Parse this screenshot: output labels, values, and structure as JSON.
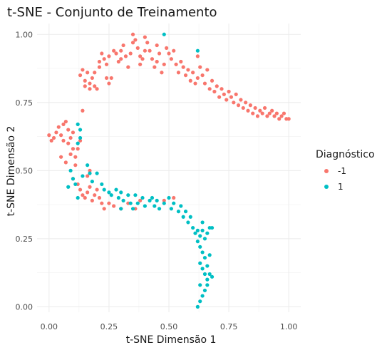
{
  "chart_data": {
    "type": "scatter",
    "title": "t-SNE - Conjunto de Treinamento",
    "xlabel": "t-SNE Dimensão 1",
    "ylabel": "t-SNE Dimensão 2",
    "xlim": [
      -0.05,
      1.05
    ],
    "ylim": [
      -0.02,
      1.04
    ],
    "x_ticks": [
      "0.00",
      "0.25",
      "0.50",
      "0.75",
      "1.00"
    ],
    "y_ticks": [
      "0.00",
      "0.25",
      "0.50",
      "0.75",
      "1.00"
    ],
    "grid": true,
    "legend": {
      "title": "Diagnóstico",
      "position": "right"
    },
    "series": [
      {
        "name": "-1",
        "color": "#F8766D",
        "points": [
          [
            0.13,
            0.85
          ],
          [
            0.14,
            0.87
          ],
          [
            0.15,
            0.83
          ],
          [
            0.16,
            0.86
          ],
          [
            0.17,
            0.82
          ],
          [
            0.18,
            0.84
          ],
          [
            0.19,
            0.81
          ],
          [
            0.19,
            0.86
          ],
          [
            0.2,
            0.8
          ],
          [
            0.21,
            0.88
          ],
          [
            0.21,
            0.9
          ],
          [
            0.22,
            0.93
          ],
          [
            0.23,
            0.91
          ],
          [
            0.24,
            0.89
          ],
          [
            0.25,
            0.92
          ],
          [
            0.24,
            0.84
          ],
          [
            0.25,
            0.82
          ],
          [
            0.26,
            0.84
          ],
          [
            0.27,
            0.94
          ],
          [
            0.28,
            0.93
          ],
          [
            0.29,
            0.9
          ],
          [
            0.3,
            0.94
          ],
          [
            0.31,
            0.96
          ],
          [
            0.32,
            0.92
          ],
          [
            0.33,
            0.88
          ],
          [
            0.34,
            0.93
          ],
          [
            0.35,
            0.97
          ],
          [
            0.35,
            1.0
          ],
          [
            0.36,
            0.98
          ],
          [
            0.37,
            0.95
          ],
          [
            0.38,
            0.92
          ],
          [
            0.38,
            0.89
          ],
          [
            0.39,
            0.91
          ],
          [
            0.4,
            0.94
          ],
          [
            0.4,
            0.99
          ],
          [
            0.41,
            0.97
          ],
          [
            0.42,
            0.94
          ],
          [
            0.43,
            0.91
          ],
          [
            0.44,
            0.88
          ],
          [
            0.45,
            0.9
          ],
          [
            0.45,
            0.96
          ],
          [
            0.46,
            0.93
          ],
          [
            0.47,
            0.86
          ],
          [
            0.48,
            0.89
          ],
          [
            0.49,
            0.95
          ],
          [
            0.5,
            0.93
          ],
          [
            0.51,
            0.91
          ],
          [
            0.52,
            0.94
          ],
          [
            0.53,
            0.89
          ],
          [
            0.54,
            0.86
          ],
          [
            0.55,
            0.9
          ],
          [
            0.56,
            0.88
          ],
          [
            0.57,
            0.85
          ],
          [
            0.58,
            0.87
          ],
          [
            0.59,
            0.83
          ],
          [
            0.6,
            0.86
          ],
          [
            0.61,
            0.82
          ],
          [
            0.62,
            0.84
          ],
          [
            0.62,
            0.92
          ],
          [
            0.63,
            0.88
          ],
          [
            0.64,
            0.85
          ],
          [
            0.65,
            0.82
          ],
          [
            0.66,
            0.87
          ],
          [
            0.67,
            0.8
          ],
          [
            0.68,
            0.83
          ],
          [
            0.69,
            0.79
          ],
          [
            0.7,
            0.81
          ],
          [
            0.71,
            0.77
          ],
          [
            0.72,
            0.8
          ],
          [
            0.73,
            0.78
          ],
          [
            0.74,
            0.76
          ],
          [
            0.75,
            0.79
          ],
          [
            0.76,
            0.77
          ],
          [
            0.77,
            0.75
          ],
          [
            0.78,
            0.78
          ],
          [
            0.79,
            0.74
          ],
          [
            0.8,
            0.76
          ],
          [
            0.81,
            0.73
          ],
          [
            0.82,
            0.75
          ],
          [
            0.83,
            0.72
          ],
          [
            0.84,
            0.74
          ],
          [
            0.85,
            0.71
          ],
          [
            0.86,
            0.73
          ],
          [
            0.87,
            0.7
          ],
          [
            0.88,
            0.72
          ],
          [
            0.89,
            0.71
          ],
          [
            0.9,
            0.73
          ],
          [
            0.91,
            0.7
          ],
          [
            0.92,
            0.71
          ],
          [
            0.93,
            0.72
          ],
          [
            0.94,
            0.7
          ],
          [
            0.95,
            0.71
          ],
          [
            0.96,
            0.69
          ],
          [
            0.97,
            0.7
          ],
          [
            0.98,
            0.71
          ],
          [
            0.99,
            0.69
          ],
          [
            1.0,
            0.69
          ],
          [
            0.15,
            0.81
          ],
          [
            0.17,
            0.8
          ],
          [
            0.3,
            0.91
          ],
          [
            0.02,
            0.62
          ],
          [
            0.03,
            0.64
          ],
          [
            0.04,
            0.66
          ],
          [
            0.05,
            0.63
          ],
          [
            0.06,
            0.61
          ],
          [
            0.06,
            0.67
          ],
          [
            0.07,
            0.68
          ],
          [
            0.08,
            0.65
          ],
          [
            0.08,
            0.6
          ],
          [
            0.09,
            0.62
          ],
          [
            0.1,
            0.64
          ],
          [
            0.1,
            0.58
          ],
          [
            0.09,
            0.56
          ],
          [
            0.11,
            0.55
          ],
          [
            0.12,
            0.58
          ],
          [
            0.13,
            0.61
          ],
          [
            0.14,
            0.72
          ],
          [
            0.11,
            0.52
          ],
          [
            0.1,
            0.47
          ],
          [
            0.12,
            0.45
          ],
          [
            0.13,
            0.43
          ],
          [
            0.14,
            0.41
          ],
          [
            0.15,
            0.4
          ],
          [
            0.16,
            0.42
          ],
          [
            0.17,
            0.44
          ],
          [
            0.18,
            0.39
          ],
          [
            0.19,
            0.41
          ],
          [
            0.2,
            0.43
          ],
          [
            0.21,
            0.4
          ],
          [
            0.22,
            0.38
          ],
          [
            0.23,
            0.36
          ],
          [
            0.25,
            0.38
          ],
          [
            0.27,
            0.37
          ],
          [
            0.3,
            0.36
          ],
          [
            0.33,
            0.38
          ],
          [
            0.36,
            0.36
          ],
          [
            0.38,
            0.39
          ],
          [
            0.0,
            0.63
          ],
          [
            0.01,
            0.61
          ],
          [
            0.05,
            0.55
          ],
          [
            0.07,
            0.53
          ],
          [
            0.16,
            0.48
          ],
          [
            0.17,
            0.5
          ],
          [
            0.48,
            0.39
          ],
          [
            0.52,
            0.4
          ]
        ]
      },
      {
        "name": "1",
        "color": "#00BFC4",
        "points": [
          [
            0.12,
            0.67
          ],
          [
            0.13,
            0.65
          ],
          [
            0.13,
            0.62
          ],
          [
            0.12,
            0.6
          ],
          [
            0.09,
            0.5
          ],
          [
            0.1,
            0.47
          ],
          [
            0.08,
            0.44
          ],
          [
            0.11,
            0.45
          ],
          [
            0.12,
            0.4
          ],
          [
            0.14,
            0.48
          ],
          [
            0.16,
            0.52
          ],
          [
            0.17,
            0.49
          ],
          [
            0.18,
            0.46
          ],
          [
            0.2,
            0.49
          ],
          [
            0.22,
            0.45
          ],
          [
            0.23,
            0.43
          ],
          [
            0.25,
            0.42
          ],
          [
            0.26,
            0.41
          ],
          [
            0.28,
            0.43
          ],
          [
            0.29,
            0.4
          ],
          [
            0.3,
            0.42
          ],
          [
            0.31,
            0.39
          ],
          [
            0.33,
            0.41
          ],
          [
            0.34,
            0.38
          ],
          [
            0.36,
            0.41
          ],
          [
            0.37,
            0.38
          ],
          [
            0.39,
            0.4
          ],
          [
            0.4,
            0.37
          ],
          [
            0.42,
            0.39
          ],
          [
            0.44,
            0.37
          ],
          [
            0.45,
            0.39
          ],
          [
            0.46,
            0.36
          ],
          [
            0.48,
            0.38
          ],
          [
            0.5,
            0.4
          ],
          [
            0.51,
            0.36
          ],
          [
            0.52,
            0.38
          ],
          [
            0.54,
            0.35
          ],
          [
            0.55,
            0.37
          ],
          [
            0.56,
            0.33
          ],
          [
            0.57,
            0.35
          ],
          [
            0.58,
            0.31
          ],
          [
            0.59,
            0.33
          ],
          [
            0.6,
            0.29
          ],
          [
            0.61,
            0.27
          ],
          [
            0.62,
            0.28
          ],
          [
            0.63,
            0.26
          ],
          [
            0.64,
            0.28
          ],
          [
            0.65,
            0.25
          ],
          [
            0.66,
            0.27
          ],
          [
            0.67,
            0.29
          ],
          [
            0.68,
            0.29
          ],
          [
            0.62,
            0.24
          ],
          [
            0.63,
            0.22
          ],
          [
            0.64,
            0.2
          ],
          [
            0.65,
            0.18
          ],
          [
            0.63,
            0.16
          ],
          [
            0.64,
            0.14
          ],
          [
            0.65,
            0.12
          ],
          [
            0.66,
            0.1
          ],
          [
            0.67,
            0.12
          ],
          [
            0.68,
            0.11
          ],
          [
            0.66,
            0.08
          ],
          [
            0.65,
            0.06
          ],
          [
            0.64,
            0.04
          ],
          [
            0.63,
            0.02
          ],
          [
            0.62,
            0.0
          ],
          [
            0.63,
            0.08
          ],
          [
            0.66,
            0.15
          ],
          [
            0.67,
            0.19
          ],
          [
            0.64,
            0.31
          ],
          [
            0.48,
            1.0
          ],
          [
            0.62,
            0.94
          ],
          [
            0.3,
            0.36
          ],
          [
            0.35,
            0.36
          ],
          [
            0.43,
            0.4
          ]
        ]
      }
    ]
  }
}
